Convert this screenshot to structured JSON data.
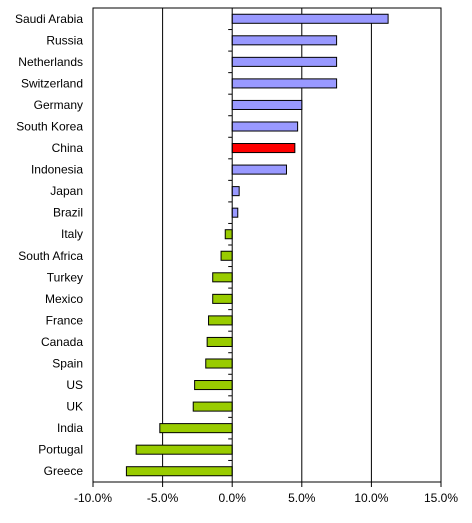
{
  "chart_data": {
    "type": "bar",
    "orientation": "horizontal",
    "title": "",
    "xlabel": "",
    "ylabel": "",
    "categories": [
      "Saudi Arabia",
      "Russia",
      "Netherlands",
      "Switzerland",
      "Germany",
      "South Korea",
      "China",
      "Indonesia",
      "Japan",
      "Brazil",
      "Italy",
      "South Africa",
      "Turkey",
      "Mexico",
      "France",
      "Canada",
      "Spain",
      "US",
      "UK",
      "India",
      "Portugal",
      "Greece"
    ],
    "values": [
      11.2,
      7.5,
      7.5,
      7.5,
      5.0,
      4.7,
      4.5,
      3.9,
      0.5,
      0.4,
      -0.5,
      -0.8,
      -1.4,
      -1.4,
      -1.7,
      -1.8,
      -1.9,
      -2.7,
      -2.8,
      -5.2,
      -6.9,
      -7.6
    ],
    "xlim": [
      -10,
      15
    ],
    "xticks": [
      -10,
      -5,
      0,
      5,
      10,
      15
    ],
    "xtick_labels": [
      "-10.0%",
      "-5.0%",
      "0.0%",
      "5.0%",
      "10.0%",
      "15.0%"
    ],
    "grid": "vertical",
    "legend": "none",
    "colors": {
      "positive": "#9999ff",
      "negative": "#99cc00",
      "highlight": "#ff0000",
      "highlight_category": "China",
      "outline": "#000000",
      "gridline": "#000000"
    }
  }
}
